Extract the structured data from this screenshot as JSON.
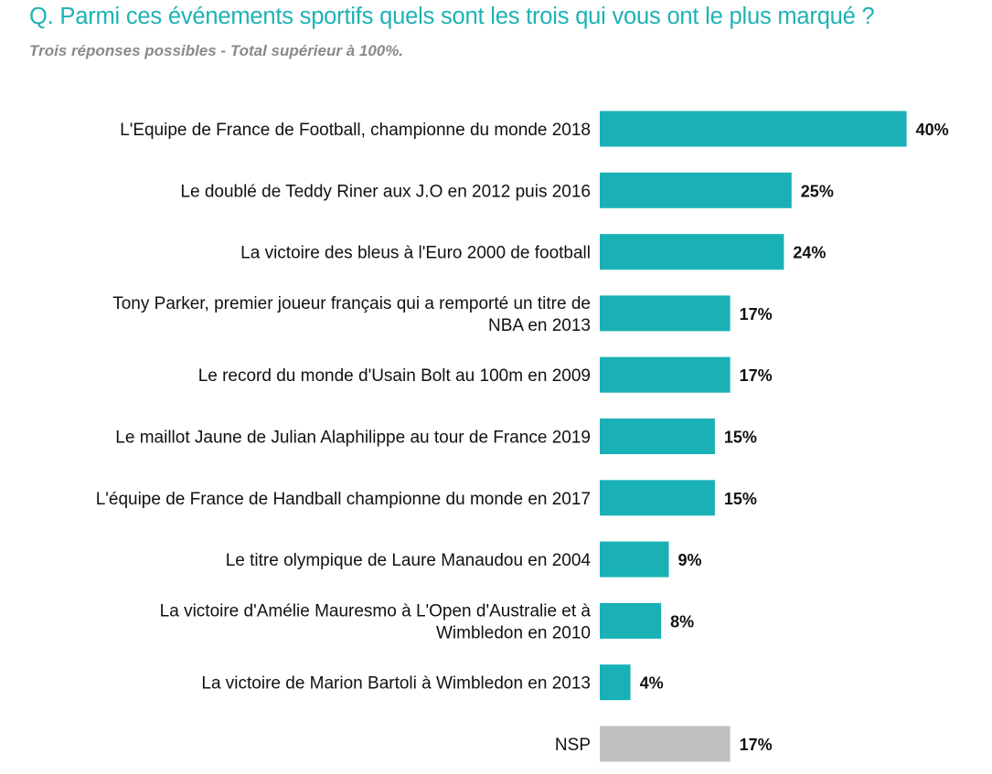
{
  "header": {
    "title": "Q. Parmi ces événements sportifs quels sont les trois qui vous ont le plus marqué ?",
    "subtitle": "Trois réponses possibles - Total supérieur à 100%."
  },
  "colors": {
    "primary_bar": "#19b1b5",
    "nsp_bar": "#c1c1c1",
    "title": "#1eb2b5",
    "subtitle": "#8a8a8a"
  },
  "chart_data": {
    "type": "bar",
    "orientation": "horizontal",
    "title": "Q. Parmi ces événements sportifs quels sont les trois qui vous ont le plus marqué ?",
    "subtitle": "Trois réponses possibles - Total supérieur à 100%.",
    "unit": "%",
    "categories": [
      [
        "L'Equipe de France de Football, championne du monde 2018"
      ],
      [
        "Le doublé de Teddy Riner aux J.O en 2012 puis 2016"
      ],
      [
        "La victoire des bleus à l'Euro 2000 de football"
      ],
      [
        "Tony Parker, premier joueur français qui a remporté un titre de",
        "NBA en 2013"
      ],
      [
        "Le record du monde d'Usain Bolt au 100m en 2009"
      ],
      [
        "Le maillot Jaune de Julian Alaphilippe au tour de France 2019"
      ],
      [
        "L'équipe de France de Handball championne du monde en 2017"
      ],
      [
        "Le titre olympique de Laure Manaudou en 2004"
      ],
      [
        "La victoire d'Amélie Mauresmo à L'Open d'Australie et à",
        "Wimbledon en 2010"
      ],
      [
        "La victoire de Marion Bartoli à Wimbledon en 2013"
      ],
      [
        "NSP"
      ]
    ],
    "values": [
      40,
      25,
      24,
      17,
      17,
      15,
      15,
      9,
      8,
      4,
      17
    ],
    "value_labels": [
      "40%",
      "25%",
      "24%",
      "17%",
      "17%",
      "15%",
      "15%",
      "9%",
      "8%",
      "4%",
      "17%"
    ],
    "bar_colors": [
      "#19b1b5",
      "#19b1b5",
      "#19b1b5",
      "#19b1b5",
      "#19b1b5",
      "#19b1b5",
      "#19b1b5",
      "#19b1b5",
      "#19b1b5",
      "#19b1b5",
      "#c1c1c1"
    ],
    "xlim": [
      0,
      40
    ],
    "grid": false,
    "legend": "none"
  }
}
